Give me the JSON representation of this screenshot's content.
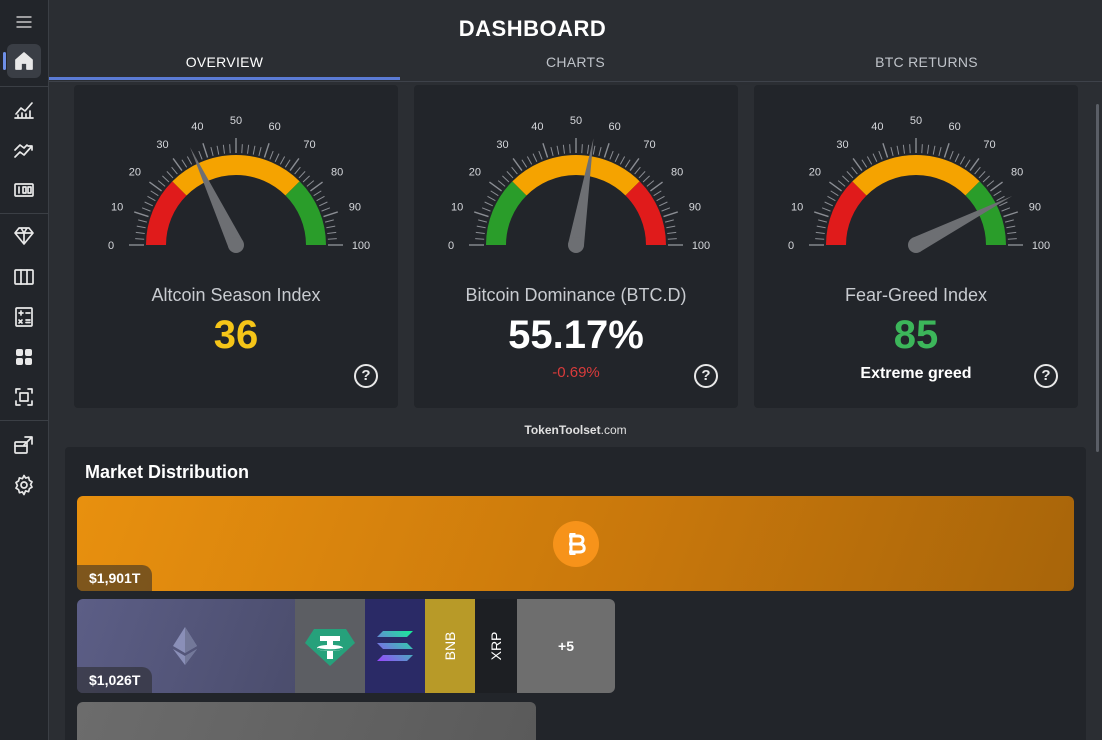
{
  "header": {
    "title": "DASHBOARD"
  },
  "tabs": [
    {
      "label": "OVERVIEW",
      "active": true
    },
    {
      "label": "CHARTS",
      "active": false
    },
    {
      "label": "BTC RETURNS",
      "active": false
    }
  ],
  "sidebar": {
    "items": [
      {
        "icon": "menu-icon"
      },
      {
        "icon": "home-icon",
        "active": true
      },
      {
        "icon": "line-chart-icon"
      },
      {
        "icon": "trend-chart-icon"
      },
      {
        "icon": "counter-icon"
      },
      {
        "icon": "diamond-icon"
      },
      {
        "icon": "columns-icon"
      },
      {
        "icon": "calculator-icon"
      },
      {
        "icon": "grid-icon"
      },
      {
        "icon": "scan-icon"
      },
      {
        "icon": "external-window-icon"
      },
      {
        "icon": "settings-icon"
      }
    ]
  },
  "gauges": [
    {
      "label": "Altcoin Season Index",
      "value": "36",
      "numeric": 36,
      "sub": "",
      "value_color": "#f5c518",
      "sub_color": "#ffffff"
    },
    {
      "label": "Bitcoin Dominance (BTC.D)",
      "value": "55.17%",
      "numeric": 55.17,
      "sub": "-0.69%",
      "value_color": "#ffffff",
      "sub_color": "#d93b3b"
    },
    {
      "label": "Fear-Greed Index",
      "value": "85",
      "numeric": 85,
      "sub": "Extreme greed",
      "value_color": "#3cb65a",
      "sub_color": "#ffffff"
    }
  ],
  "gauge_ticks": [
    "0",
    "10",
    "20",
    "30",
    "40",
    "50",
    "60",
    "70",
    "80",
    "90",
    "100"
  ],
  "gauge_segments": [
    {
      "name": "altcoin",
      "colors": [
        "#e01b1b",
        "#f5a300",
        "#2a9d2a"
      ]
    },
    {
      "name": "dominance",
      "colors": [
        "#2a9d2a",
        "#f5a300",
        "#e01b1b"
      ]
    },
    {
      "name": "fear-greed",
      "colors": [
        "#e01b1b",
        "#f5a300",
        "#2a9d2a"
      ]
    }
  ],
  "help_glyph": "?",
  "brand": {
    "bold": "TokenToolset",
    "rest": ".com"
  },
  "market": {
    "title": "Market Distribution",
    "btc_label": "$1,901T",
    "eth_label": "$1,026T",
    "bnb_text": "BNB",
    "xrp_text": "XRP",
    "more_text": "+5"
  }
}
